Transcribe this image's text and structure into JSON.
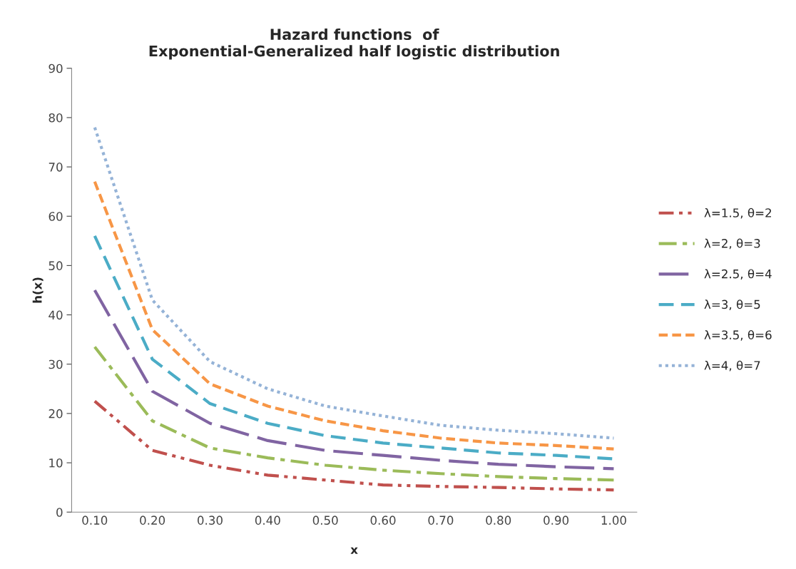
{
  "chart_data": {
    "type": "line",
    "title": "Hazard functions  of\nExponential-Generalized half logistic distribution",
    "xlabel": "x",
    "ylabel": "h(x)",
    "categories": [
      "0.10",
      "0.20",
      "0.30",
      "0.40",
      "0.50",
      "0.60",
      "0.70",
      "0.80",
      "0.90",
      "1.00"
    ],
    "ylim": [
      0,
      90
    ],
    "yticks": [
      0,
      10,
      20,
      30,
      40,
      50,
      60,
      70,
      80,
      90
    ],
    "grid": false,
    "legend": "right",
    "marker": "none",
    "series": [
      {
        "name": "λ=1.5, θ=2",
        "color": "#c0504d",
        "line_style": "dashed",
        "values": [
          22.5,
          12.5,
          9.5,
          7.5,
          6.5,
          5.5,
          5.2,
          5.0,
          4.7,
          4.5
        ]
      },
      {
        "name": "λ=2, θ=3",
        "color": "#9bbb59",
        "line_style": "dashed",
        "values": [
          33.5,
          18.5,
          13,
          11,
          9.5,
          8.5,
          7.8,
          7.2,
          6.8,
          6.5
        ]
      },
      {
        "name": "λ=2.5, θ=4",
        "color": "#8064a2",
        "line_style": "dashed",
        "values": [
          45,
          24.5,
          18,
          14.5,
          12.5,
          11.5,
          10.5,
          9.7,
          9.2,
          8.8
        ]
      },
      {
        "name": "λ=3, θ=5",
        "color": "#4bacc6",
        "line_style": "dashed",
        "values": [
          56,
          31,
          22,
          18,
          15.5,
          14,
          13,
          12,
          11.5,
          10.8
        ]
      },
      {
        "name": "λ=3.5, θ=6",
        "color": "#f79646",
        "line_style": "dashed",
        "values": [
          67,
          37,
          26,
          21.5,
          18.5,
          16.5,
          15,
          14,
          13.5,
          12.8
        ]
      },
      {
        "name": "λ=4, θ=7",
        "color": "#95b3d7",
        "line_style": "dotted",
        "values": [
          78,
          43,
          30.5,
          25,
          21.5,
          19.5,
          17.6,
          16.6,
          15.9,
          15
        ]
      }
    ]
  }
}
